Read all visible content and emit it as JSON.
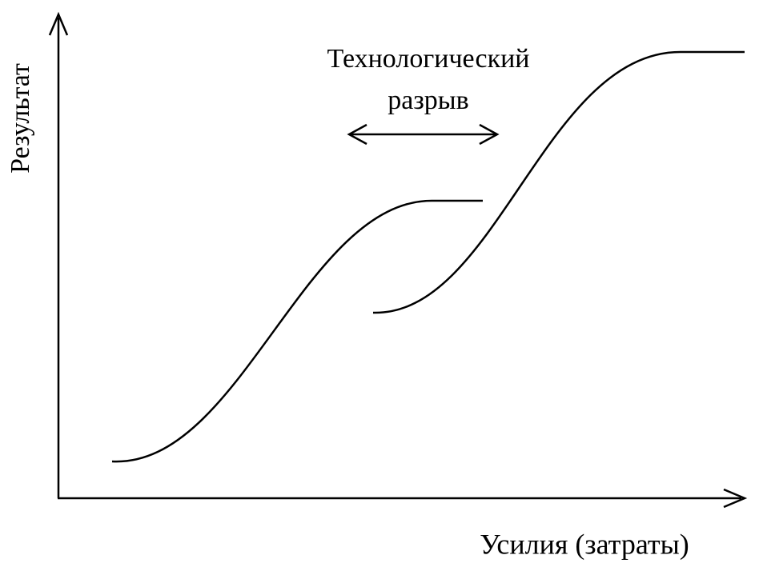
{
  "axes": {
    "y_label": "Результат",
    "x_label": "Усилия (затраты)"
  },
  "annotation": {
    "lines": [
      "Технологический",
      "разрыв"
    ]
  }
}
